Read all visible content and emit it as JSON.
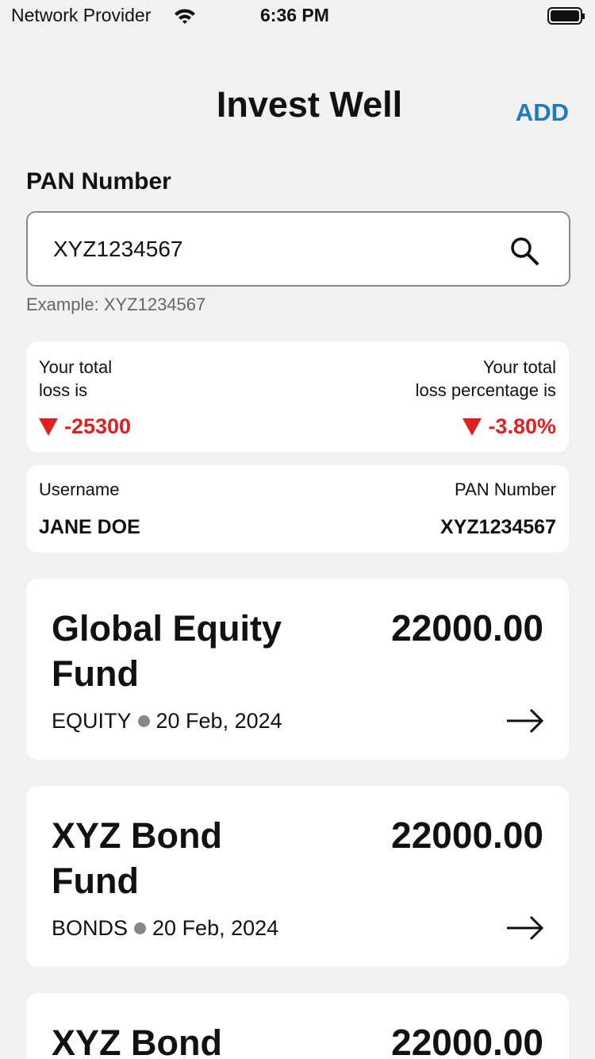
{
  "status_bar": {
    "carrier": "Network Provider",
    "time": "6:36 PM"
  },
  "header": {
    "title": "Invest Well",
    "action": "ADD"
  },
  "search": {
    "label": "PAN Number",
    "value": "XYZ1234567",
    "hint": "Example: XYZ1234567"
  },
  "summary": {
    "loss_label": "Your total\nloss is",
    "loss_value": "-25300",
    "percentage_label": "Your total\nloss percentage is",
    "percentage_value": "-3.80%"
  },
  "user": {
    "username_label": "Username",
    "username": "JANE DOE",
    "pan_label": "PAN Number",
    "pan": "XYZ1234567"
  },
  "funds": [
    {
      "name": "Global Equity\nFund",
      "amount": "22000.00",
      "category": "EQUITY",
      "date": "20 Feb, 2024"
    },
    {
      "name": "XYZ Bond\nFund",
      "amount": "22000.00",
      "category": "BONDS",
      "date": "20 Feb, 2024"
    },
    {
      "name": "XYZ Bond",
      "amount": "22000.00"
    }
  ]
}
